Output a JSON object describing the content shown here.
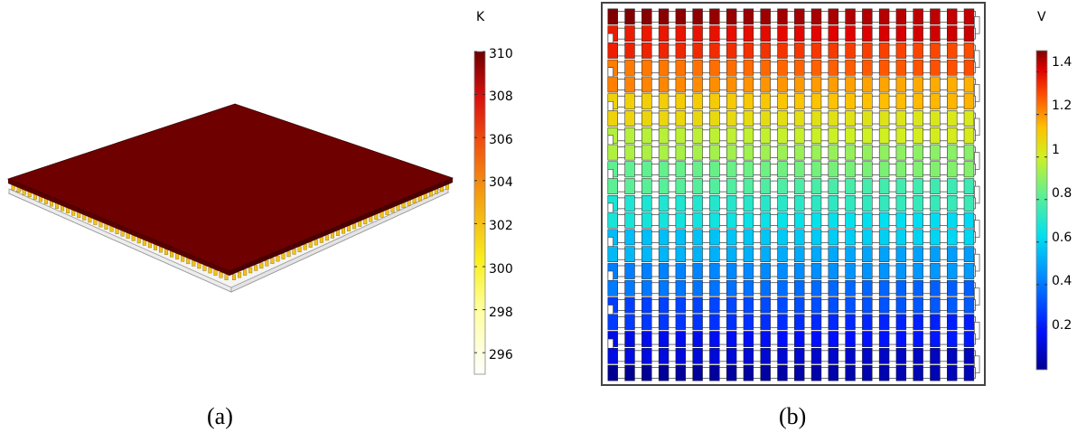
{
  "figure": {
    "panel_a": {
      "caption": "(a)",
      "colorbar": {
        "unit": "K",
        "min": 295,
        "max": 310,
        "ticks": [
          "310",
          "308",
          "306",
          "304",
          "302",
          "300",
          "298",
          "296"
        ],
        "tick_values": [
          310,
          308,
          306,
          304,
          302,
          300,
          298,
          296
        ],
        "colormap": "heat (white-yellow-orange-red-dark red)"
      },
      "plate_color": "#6e0000",
      "module_pellet_color": "#f2c21a"
    },
    "panel_b": {
      "caption": "(b)",
      "colorbar": {
        "unit": "V",
        "min": 0,
        "max": 1.5,
        "ticks": [
          "1.4",
          "1.2",
          "1",
          "0.8",
          "0.6",
          "0.4",
          "0.2"
        ],
        "tick_values": [
          1.4,
          1.2,
          1.0,
          0.8,
          0.6,
          0.4,
          0.2
        ],
        "colormap": "rainbow (dark blue-cyan-green-yellow-red-dark red)"
      },
      "grid": {
        "rows": 22,
        "columns": 22
      }
    }
  }
}
